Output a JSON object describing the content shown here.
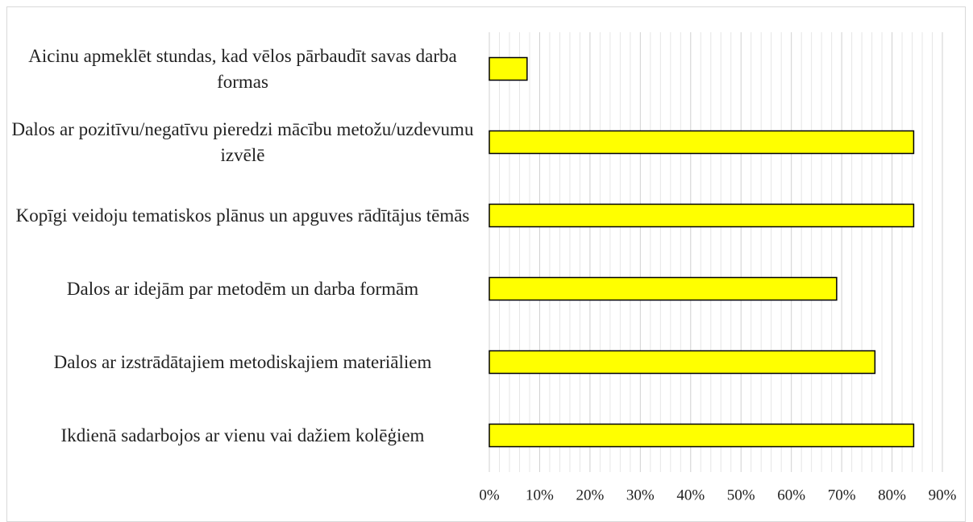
{
  "chart_data": {
    "type": "bar",
    "orientation": "horizontal",
    "categories": [
      "Aicinu apmeklēt stundas, kad vēlos pārbaudīt savas darba formas",
      "Dalos ar pozitīvu/negatīvu pieredzi mācību metožu/uzdevumu izvēlē",
      "Kopīgi veidoju tematiskos plānus un apguves rādītājus tēmās",
      "Dalos ar idejām par metodēm un darba formām",
      "Dalos ar izstrādātajiem metodiskajiem materiāliem",
      "Ikdienā sadarbojos ar vienu vai dažiem kolēģiem"
    ],
    "values": [
      7.5,
      84.3,
      84.3,
      69,
      76.6,
      84.3
    ],
    "color": "#ffff00",
    "xlim": [
      0,
      90
    ],
    "xticks": [
      {
        "value": 0,
        "label": "0%"
      },
      {
        "value": 10,
        "label": "10%"
      },
      {
        "value": 20,
        "label": "20%"
      },
      {
        "value": 30,
        "label": "30%"
      },
      {
        "value": 40,
        "label": "40%"
      },
      {
        "value": 50,
        "label": "50%"
      },
      {
        "value": 60,
        "label": "60%"
      },
      {
        "value": 70,
        "label": "70%"
      },
      {
        "value": 80,
        "label": "80%"
      },
      {
        "value": 90,
        "label": "90%"
      }
    ],
    "grid": true
  }
}
